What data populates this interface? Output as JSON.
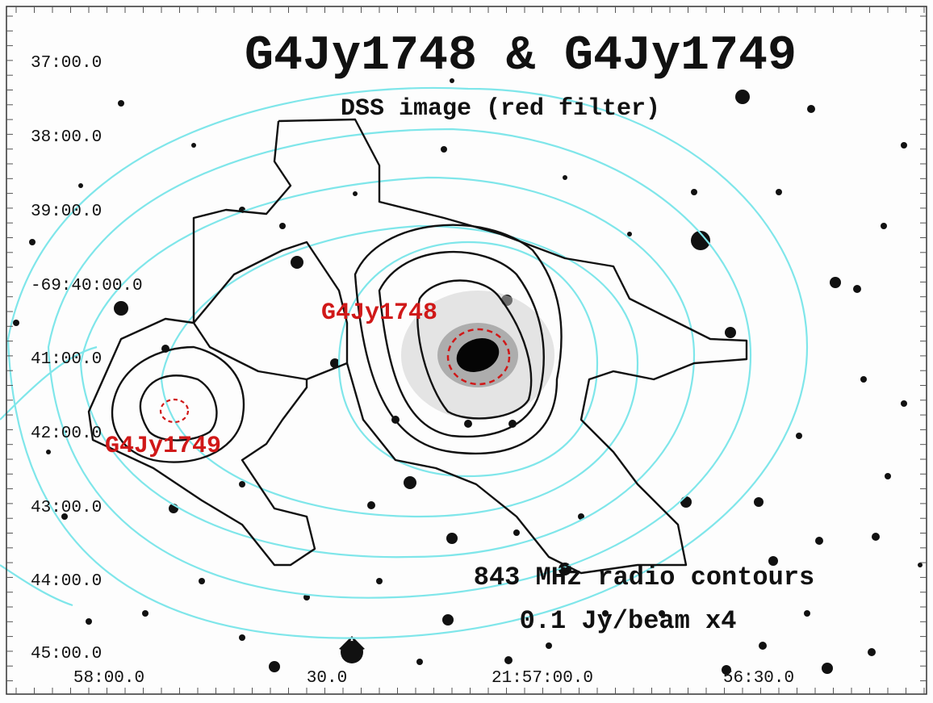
{
  "title": "G4Jy1748 & G4Jy1749",
  "subtitle": "DSS image (red filter)",
  "sources": [
    {
      "label": "G4Jy1748"
    },
    {
      "label": "G4Jy1749"
    }
  ],
  "annotation": [
    "843 MHz radio contours",
    "0.1 Jy/beam x4"
  ],
  "axes": {
    "y_ticks": [
      "37:00.0",
      "38:00.0",
      "39:00.0",
      "-69:40:00.0",
      "41:00.0",
      "42:00.0",
      "43:00.0",
      "44:00.0",
      "45:00.0"
    ],
    "x_ticks": [
      "58:00.0",
      "30.0",
      "21:57:00.0",
      "56:30.0"
    ]
  }
}
